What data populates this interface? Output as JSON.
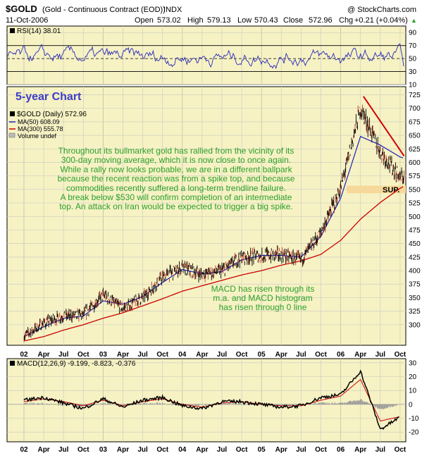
{
  "header": {
    "symbol": "$GOLD",
    "name": "(Gold - Continuous Contract (EOD))",
    "exchange": "INDX",
    "watermark": "@ StockCharts.com",
    "date": "11-Oct-2006",
    "open_label": "Open",
    "open": "573.02",
    "high_label": "High",
    "high": "579.13",
    "low_label": "Low",
    "low": "570.43",
    "close_label": "Close",
    "close": "572.96",
    "chg_label": "Chg",
    "chg": "+0.21 (+0.04%)",
    "chg_arrow": "▲"
  },
  "colors": {
    "bg": "#ffffff",
    "panel_bg": "#f6f2c4",
    "grid": "#cfcfbf",
    "price": "#000000",
    "ma50": "#1f1fb8",
    "ma300": "#cc0000",
    "rsi": "#2a2ab8",
    "trendline": "#d00000",
    "support_band": "#f6d99a",
    "annotation": "#2ca02c",
    "title_blue": "#3c3cc8"
  },
  "rsi_panel": {
    "legend": "RSI(14) 38.01",
    "ticks": [
      "90",
      "70",
      "50",
      "30",
      "10"
    ]
  },
  "price_panel": {
    "title": "5-year Chart",
    "legend_price": "$GOLD (Daily) 572.96",
    "legend_ma50": "MA(50) 608.09",
    "legend_ma300": "MA(300) 555.78",
    "legend_volume": "Volume undef",
    "ticks": [
      "725",
      "700",
      "675",
      "650",
      "625",
      "600",
      "575",
      "550",
      "525",
      "500",
      "475",
      "450",
      "425",
      "400",
      "375",
      "350",
      "325",
      "300"
    ],
    "support_label": "SUP.",
    "note1_lines": [
      "Throughout its bullmarket gold has rallied from the vicinity of its",
      "300-day moving average, which it is now close to once again.",
      "While a rally now looks probable, we are in a different ballpark",
      "because the recent reaction was from a spike top, and because",
      "commodities recently suffered a long-term trendline failure.",
      "A break below $530 will confirm completion of an intermediate",
      "top. An attack on Iran would be expected to trigger a big spike."
    ],
    "note2_lines": [
      "MACD has risen through its",
      "m.a. and MACD histogram",
      "has risen through 0 line"
    ]
  },
  "macd_panel": {
    "legend": "MACD(12,26,9) -9.199, -8.823, -0.376",
    "ticks": [
      "30",
      "20",
      "10",
      "0",
      "-10",
      "-20"
    ]
  },
  "x_axis_labels": [
    "02",
    "Apr",
    "Jul",
    "Oct",
    "03",
    "Apr",
    "Jul",
    "Oct",
    "04",
    "Apr",
    "Jul",
    "Oct",
    "05",
    "Apr",
    "Jul",
    "Oct",
    "06",
    "Apr",
    "Jul",
    "Oct"
  ],
  "chart_data": [
    {
      "type": "line",
      "name": "$GOLD price panel",
      "x_quarter_index": [
        0,
        1,
        2,
        3,
        4,
        5,
        6,
        7,
        8,
        9,
        10,
        11,
        12,
        13,
        14,
        15,
        16,
        17,
        18,
        19,
        19.2
      ],
      "x_labels": [
        "02",
        "Apr",
        "Jul",
        "Oct",
        "03",
        "Apr",
        "Jul",
        "Oct",
        "04",
        "Apr",
        "Jul",
        "Oct",
        "05",
        "Apr",
        "Jul",
        "Oct",
        "06",
        "Apr",
        "Jul",
        "Oct"
      ],
      "ylim": [
        262,
        740
      ],
      "series": [
        {
          "name": "$GOLD (Daily)",
          "values": [
            279,
            303,
            316,
            318,
            355,
            330,
            350,
            388,
            405,
            393,
            400,
            425,
            427,
            430,
            420,
            470,
            552,
            700,
            620,
            572,
            573
          ]
        },
        {
          "name": "MA(50)",
          "values": [
            278,
            296,
            312,
            316,
            344,
            338,
            352,
            378,
            402,
            394,
            398,
            420,
            428,
            428,
            425,
            463,
            534,
            648,
            632,
            610,
            608
          ]
        },
        {
          "name": "MA(300)",
          "values": [
            270,
            278,
            290,
            300,
            312,
            322,
            335,
            348,
            362,
            372,
            382,
            392,
            400,
            410,
            418,
            430,
            456,
            495,
            526,
            552,
            556
          ]
        }
      ],
      "support_level": 550,
      "trendline": {
        "from": [
          17.15,
          722
        ],
        "to": [
          19.2,
          612
        ]
      }
    },
    {
      "type": "line",
      "name": "RSI(14)",
      "ylim": [
        10,
        100
      ],
      "reference_lines": [
        70,
        50,
        30
      ],
      "last_value": 38.01
    },
    {
      "type": "line",
      "name": "MACD(12,26,9)",
      "ylim": [
        -27,
        33
      ],
      "zero_line": 0,
      "series": [
        {
          "name": "MACD",
          "values": [
            3,
            5,
            1,
            -3,
            4,
            -2,
            3,
            5,
            -1,
            -3,
            2,
            2,
            0,
            -2,
            -1,
            5,
            7,
            24,
            -18,
            -9.2
          ]
        },
        {
          "name": "Signal",
          "values": [
            2,
            4,
            2,
            -1,
            3,
            -1,
            2,
            4,
            0,
            -2,
            1,
            2,
            0,
            -1,
            -1,
            3,
            6,
            18,
            -12,
            -8.8
          ]
        }
      ],
      "last_macd": -9.199,
      "last_signal": -8.823,
      "last_histogram": -0.376
    }
  ]
}
